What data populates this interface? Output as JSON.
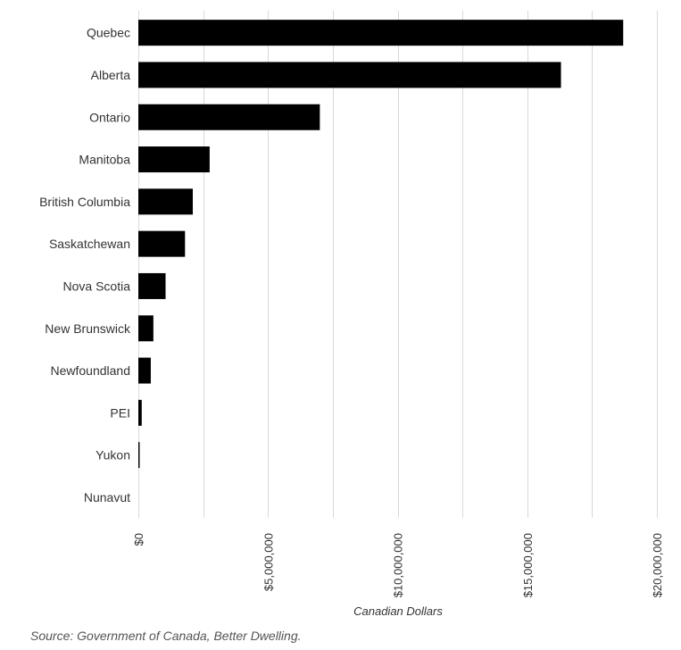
{
  "chart_data": {
    "type": "bar",
    "orientation": "horizontal",
    "categories": [
      "Quebec",
      "Alberta",
      "Ontario",
      "Manitoba",
      "British Columbia",
      "Saskatchewan",
      "Nova Scotia",
      "New Brunswick",
      "Newfoundland",
      "PEI",
      "Yukon",
      "Nunavut"
    ],
    "values": [
      18700000,
      16300000,
      7000000,
      2750000,
      2100000,
      1800000,
      1050000,
      580000,
      480000,
      130000,
      50000,
      0
    ],
    "xlabel": "Canadian Dollars",
    "xlim": [
      0,
      20000000
    ],
    "x_ticks": [
      0,
      5000000,
      10000000,
      15000000,
      20000000
    ],
    "x_tick_labels": [
      "$0",
      "$5,000,000",
      "$10,000,000",
      "$15,000,000",
      "$20,000,000"
    ],
    "grid": true,
    "bar_color": "#000000",
    "grid_color": "#d9d9d9"
  },
  "source": "Source: Government of Canada, Better Dwelling."
}
